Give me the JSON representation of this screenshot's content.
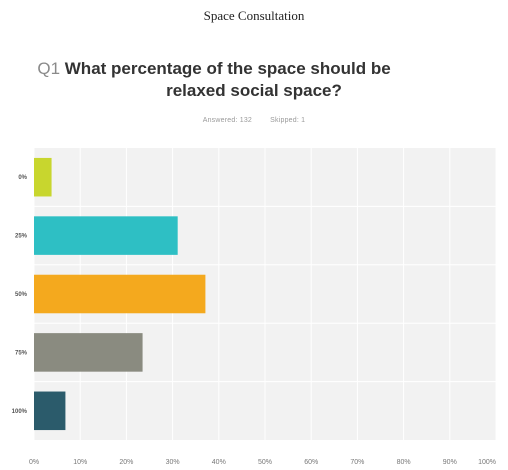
{
  "header": {
    "title": "Space Consultation"
  },
  "question": {
    "number": "Q1",
    "text_line1": "What percentage of the space should be",
    "text_line2": "relaxed social space?"
  },
  "stats": {
    "answered": "Answered: 132",
    "skipped": "Skipped: 1"
  },
  "chart_data": {
    "type": "bar",
    "orientation": "horizontal",
    "categories": [
      "0%",
      "25%",
      "50%",
      "75%",
      "100%"
    ],
    "values": [
      3.8,
      31.1,
      37.1,
      23.5,
      6.8
    ],
    "colors": [
      "#c8d62e",
      "#2ebfc4",
      "#f4a91e",
      "#8a8b80",
      "#2b5b6b"
    ],
    "xlim": [
      0,
      100
    ],
    "xticks": [
      "0%",
      "10%",
      "20%",
      "30%",
      "40%",
      "50%",
      "60%",
      "70%",
      "80%",
      "90%",
      "100%"
    ],
    "grid": true,
    "plot_background": "#f2f2f2"
  }
}
